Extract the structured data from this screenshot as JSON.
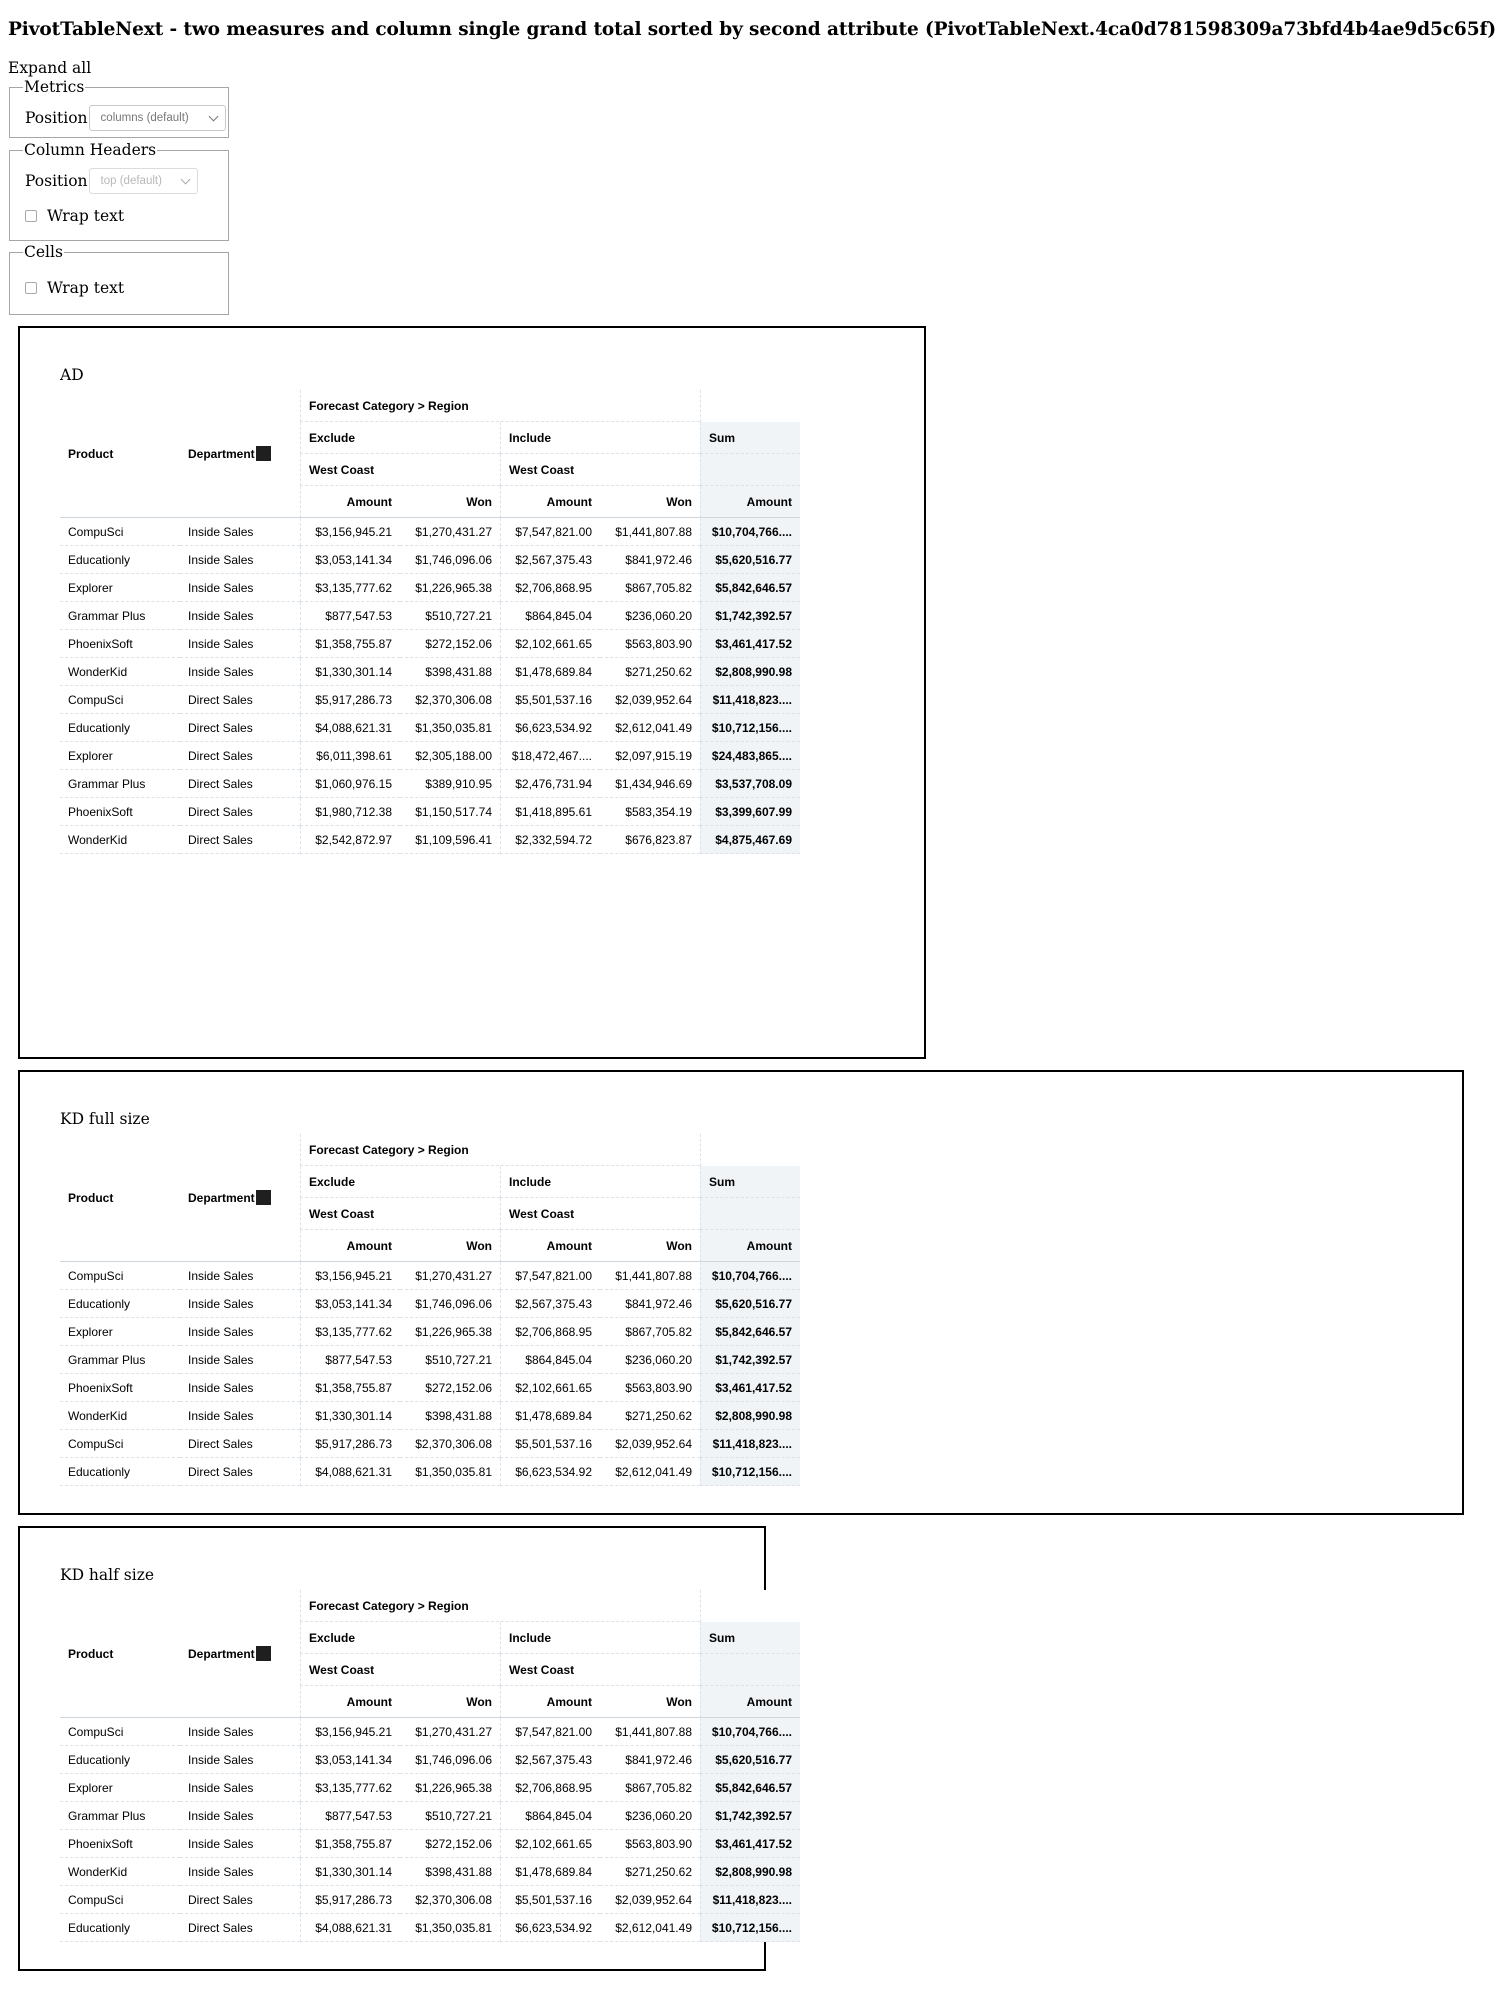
{
  "page_title": "PivotTableNext - two measures and column single grand total sorted by second attribute (PivotTableNext.4ca0d781598309a73bfd4b4ae9d5c65f)",
  "expand_all": "Expand all",
  "metrics": {
    "legend": "Metrics",
    "position_label": "Position",
    "position_value": "columns (default)"
  },
  "column_headers": {
    "legend": "Column Headers",
    "position_label": "Position",
    "position_value": "top (default)",
    "wrap_text_label": "Wrap text"
  },
  "cells": {
    "legend": "Cells",
    "wrap_text_label": "Wrap text"
  },
  "panels": [
    {
      "title": "AD",
      "visible_rows": 12
    },
    {
      "title": "KD full size",
      "visible_rows": 8
    },
    {
      "title": "KD half size",
      "visible_rows": 8
    }
  ],
  "table": {
    "attr_header": "Forecast Category > Region",
    "row_headers": [
      "Product",
      "Department"
    ],
    "groups": [
      {
        "label": "Exclude",
        "region": "West Coast",
        "measures": [
          "Amount",
          "Won"
        ]
      },
      {
        "label": "Include",
        "region": "West Coast",
        "measures": [
          "Amount",
          "Won"
        ]
      }
    ],
    "grand_total": {
      "label": "Sum",
      "measure": "Amount"
    },
    "rows": [
      {
        "product": "CompuSci",
        "department": "Inside Sales",
        "values": [
          "$3,156,945.21",
          "$1,270,431.27",
          "$7,547,821.00",
          "$1,441,807.88"
        ],
        "total": "$10,704,766...."
      },
      {
        "product": "Educationly",
        "department": "Inside Sales",
        "values": [
          "$3,053,141.34",
          "$1,746,096.06",
          "$2,567,375.43",
          "$841,972.46"
        ],
        "total": "$5,620,516.77"
      },
      {
        "product": "Explorer",
        "department": "Inside Sales",
        "values": [
          "$3,135,777.62",
          "$1,226,965.38",
          "$2,706,868.95",
          "$867,705.82"
        ],
        "total": "$5,842,646.57"
      },
      {
        "product": "Grammar Plus",
        "department": "Inside Sales",
        "values": [
          "$877,547.53",
          "$510,727.21",
          "$864,845.04",
          "$236,060.20"
        ],
        "total": "$1,742,392.57"
      },
      {
        "product": "PhoenixSoft",
        "department": "Inside Sales",
        "values": [
          "$1,358,755.87",
          "$272,152.06",
          "$2,102,661.65",
          "$563,803.90"
        ],
        "total": "$3,461,417.52"
      },
      {
        "product": "WonderKid",
        "department": "Inside Sales",
        "values": [
          "$1,330,301.14",
          "$398,431.88",
          "$1,478,689.84",
          "$271,250.62"
        ],
        "total": "$2,808,990.98"
      },
      {
        "product": "CompuSci",
        "department": "Direct Sales",
        "values": [
          "$5,917,286.73",
          "$2,370,306.08",
          "$5,501,537.16",
          "$2,039,952.64"
        ],
        "total": "$11,418,823...."
      },
      {
        "product": "Educationly",
        "department": "Direct Sales",
        "values": [
          "$4,088,621.31",
          "$1,350,035.81",
          "$6,623,534.92",
          "$2,612,041.49"
        ],
        "total": "$10,712,156...."
      },
      {
        "product": "Explorer",
        "department": "Direct Sales",
        "values": [
          "$6,011,398.61",
          "$2,305,188.00",
          "$18,472,467....",
          "$2,097,915.19"
        ],
        "total": "$24,483,865...."
      },
      {
        "product": "Grammar Plus",
        "department": "Direct Sales",
        "values": [
          "$1,060,976.15",
          "$389,910.95",
          "$2,476,731.94",
          "$1,434,946.69"
        ],
        "total": "$3,537,708.09"
      },
      {
        "product": "PhoenixSoft",
        "department": "Direct Sales",
        "values": [
          "$1,980,712.38",
          "$1,150,517.74",
          "$1,418,895.61",
          "$583,354.19"
        ],
        "total": "$3,399,607.99"
      },
      {
        "product": "WonderKid",
        "department": "Direct Sales",
        "values": [
          "$2,542,872.97",
          "$1,109,596.41",
          "$2,332,594.72",
          "$676,823.87"
        ],
        "total": "$4,875,467.69"
      }
    ]
  }
}
